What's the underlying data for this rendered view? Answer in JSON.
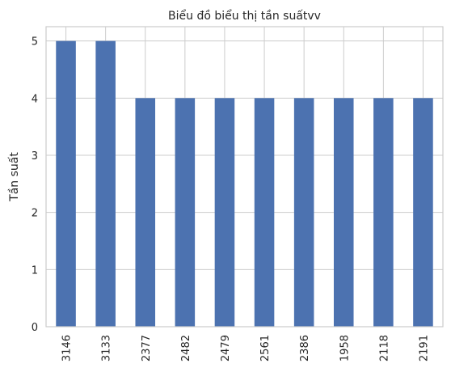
{
  "chart_data": {
    "type": "bar",
    "title": "Biểu đồ biểu thị tần suấtvv",
    "xlabel": "",
    "ylabel": "Tần suất",
    "categories": [
      "3146",
      "3133",
      "2377",
      "2482",
      "2479",
      "2561",
      "2386",
      "1958",
      "2118",
      "2191"
    ],
    "values": [
      5,
      5,
      4,
      4,
      4,
      4,
      4,
      4,
      4,
      4
    ],
    "ylim": [
      0,
      5.25
    ],
    "yticks": [
      "0",
      "1",
      "2",
      "3",
      "4",
      "5"
    ],
    "grid": true,
    "bar_color": "#4c72b0",
    "grid_color": "#cccccc",
    "spine_color": "#cccccc"
  }
}
